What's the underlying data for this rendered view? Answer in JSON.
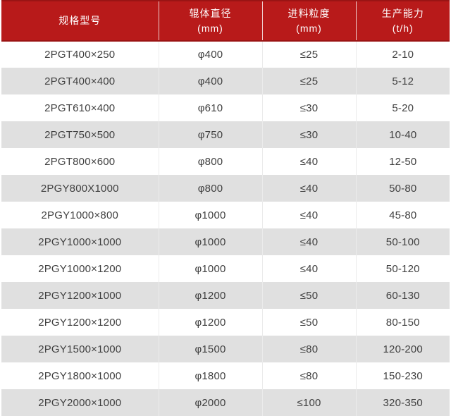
{
  "header": {
    "columns": [
      {
        "title": "规格型号",
        "unit": ""
      },
      {
        "title": "辊体直径",
        "unit": "(mm)"
      },
      {
        "title": "进料粒度",
        "unit": "(mm)"
      },
      {
        "title": "生产能力",
        "unit": "(t/h)"
      }
    ]
  },
  "chart_data": {
    "type": "table",
    "columns": [
      "规格型号",
      "辊体直径 (mm)",
      "进料粒度 (mm)",
      "生产能力 (t/h)"
    ],
    "rows": [
      [
        "2PGT400×250",
        "φ400",
        "≤25",
        "2-10"
      ],
      [
        "2PGT400×400",
        "φ400",
        "≤25",
        "5-12"
      ],
      [
        "2PGT610×400",
        "φ610",
        "≤30",
        "5-20"
      ],
      [
        "2PGT750×500",
        "φ750",
        "≤30",
        "10-40"
      ],
      [
        "2PGT800×600",
        "φ800",
        "≤40",
        "12-50"
      ],
      [
        "2PGY800X1000",
        "φ800",
        "≤40",
        "50-80"
      ],
      [
        "2PGY1000×800",
        "φ1000",
        "≤40",
        "45-80"
      ],
      [
        "2PGY1000×1000",
        "φ1000",
        "≤40",
        "50-100"
      ],
      [
        "2PGY1000×1200",
        "φ1000",
        "≤40",
        "50-120"
      ],
      [
        "2PGY1200×1000",
        "φ1200",
        "≤50",
        "60-130"
      ],
      [
        "2PGY1200×1200",
        "φ1200",
        "≤50",
        "80-150"
      ],
      [
        "2PGY1500×1000",
        "φ1500",
        "≤80",
        "120-200"
      ],
      [
        "2PGY1800×1000",
        "φ1800",
        "≤80",
        "150-230"
      ],
      [
        "2PGY2000×1000",
        "φ2000",
        "≤100",
        "320-350"
      ]
    ]
  },
  "colors": {
    "header_bg": "#b81a1a",
    "header_edge": "#9a1414",
    "header_text": "#ffffff",
    "row_alt_bg": "#e0e0e0",
    "row_divider": "#ebebeb",
    "row_text": "#404040",
    "page_bg": "#ffffff"
  }
}
